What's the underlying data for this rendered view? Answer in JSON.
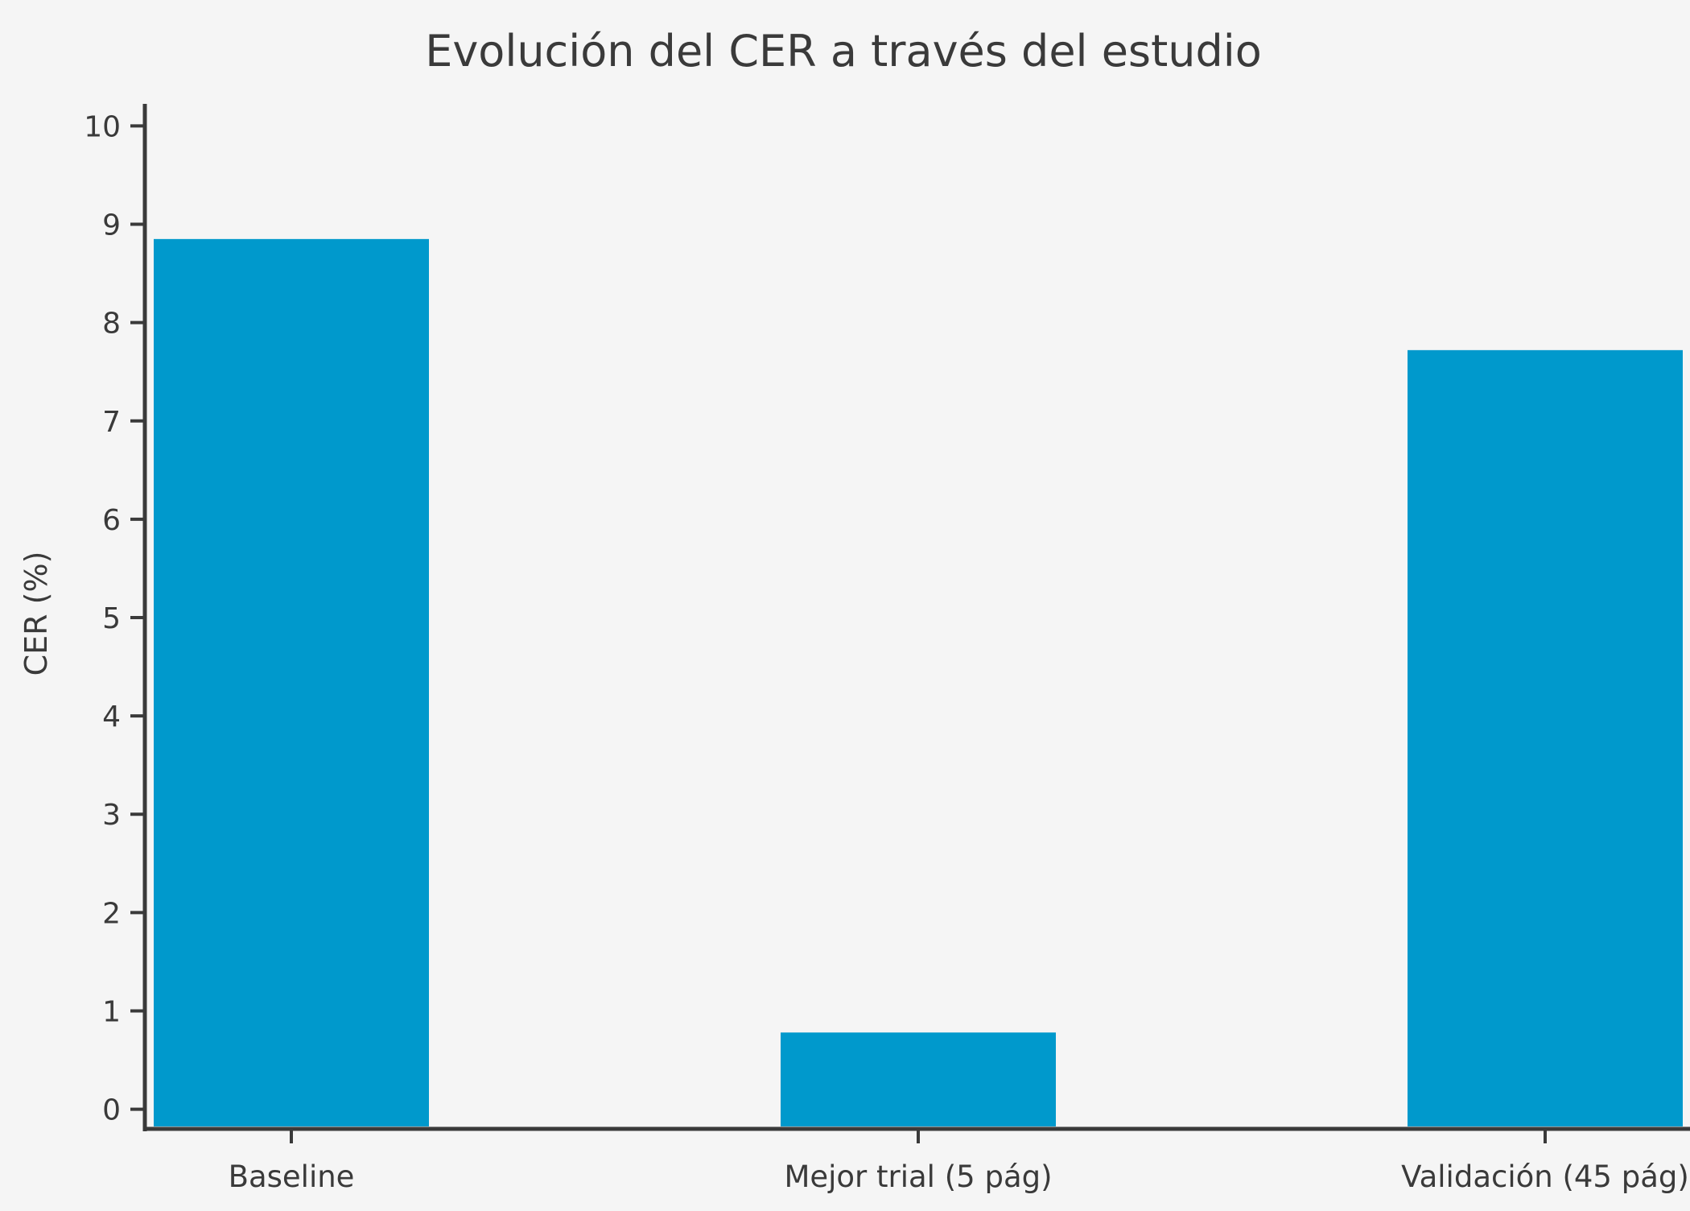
{
  "colors": {
    "background": "#f5f5f5",
    "bar": "#0099cc",
    "axis": "#3a3a3a",
    "text": "#3a3a3a"
  },
  "chart_data": {
    "type": "bar",
    "title": "Evolución del CER a través del estudio",
    "xlabel": "",
    "ylabel": "CER (%)",
    "categories": [
      "Baseline",
      "Mejor trial (5 pág)",
      "Validación (45 pág)"
    ],
    "values": [
      8.85,
      0.78,
      7.72
    ],
    "ylim": [
      -0.2,
      10.2
    ],
    "yticks": [
      0,
      1,
      2,
      3,
      4,
      5,
      6,
      7,
      8,
      9,
      10
    ],
    "grid": false,
    "legend": "none"
  }
}
